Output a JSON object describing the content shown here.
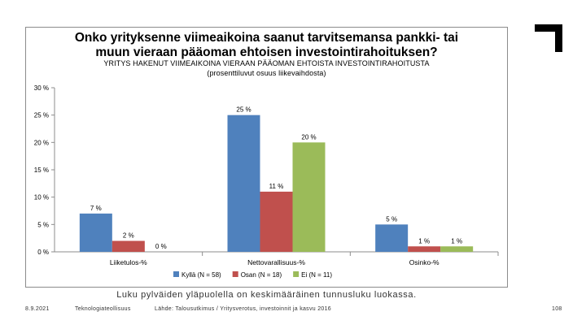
{
  "chart_data": {
    "type": "bar",
    "title": "Onko yrityksenne viimeaikoina saanut tarvitsemansa pankki- tai muun vieraan pääoman ehtoisen investointirahoituksen?",
    "title_lines": [
      "Onko yrityksenne viimeaikoina saanut tarvitsemansa pankki- tai",
      "muun vieraan pääoman ehtoisen investointirahoituksen?"
    ],
    "subtitle_lines": [
      "YRITYS HAKENUT VIIMEAIKOINA VIERAAN PÄÄOMAN EHTOISTA INVESTOINTIRAHOITUSTA",
      "(prosenttiluvut osuus liikevaihdosta)"
    ],
    "categories": [
      "Liiketulos-%",
      "Nettovarallisuus-%",
      "Osinko-%"
    ],
    "series": [
      {
        "name": "Kyllä (N = 58)",
        "color": "#4f81bd",
        "values": [
          7,
          25,
          5
        ],
        "labels": [
          "7 %",
          "25 %",
          "5 %"
        ]
      },
      {
        "name": "Osan (N = 18)",
        "color": "#c0504d",
        "values": [
          2,
          11,
          1
        ],
        "labels": [
          "2 %",
          "11 %",
          "1 %"
        ]
      },
      {
        "name": "Ei (N = 11)",
        "color": "#9bbb59",
        "values": [
          0,
          20,
          1
        ],
        "labels": [
          "0 %",
          "20 %",
          "1 %"
        ]
      }
    ],
    "yticks": [
      0,
      5,
      10,
      15,
      20,
      25,
      30
    ],
    "ytick_labels": [
      "0 %",
      "5 %",
      "10 %",
      "15 %",
      "20 %",
      "25 %",
      "30 %"
    ],
    "ylim": [
      0,
      30
    ],
    "grid": false,
    "legend": "bottom"
  },
  "caption": "Luku pylväiden yläpuolella on keskimääräinen tunnusluku luokassa.",
  "footer": {
    "date": "8.9.2021",
    "organization": "Teknologiateollisuus",
    "source": "Lähde: Talousutkimus / Yritysverotus, investoinnit ja kasvu 2016",
    "page": "108"
  },
  "colors": {
    "axis": "#8c8c8c",
    "brand_mark": "#000000"
  },
  "icons": {
    "brand": "corner-bracket-icon"
  }
}
